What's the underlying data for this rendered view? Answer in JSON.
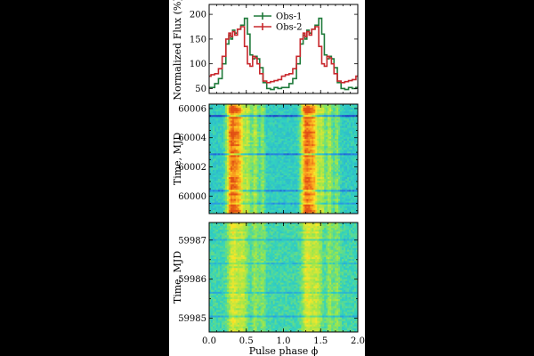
{
  "chart_data": [
    {
      "type": "line",
      "ylabel": "Normalized Flux (%)",
      "xlim": [
        0,
        2
      ],
      "ylim": [
        40,
        220
      ],
      "yticks": [
        "50",
        "100",
        "150",
        "200"
      ],
      "legend_position": "top-center",
      "series": [
        {
          "name": "Obs-1",
          "color": "#1f7a3a",
          "x": [
            0.0,
            0.05,
            0.1,
            0.15,
            0.2,
            0.25,
            0.28,
            0.3,
            0.33,
            0.36,
            0.4,
            0.45,
            0.5,
            0.53,
            0.57,
            0.6,
            0.63,
            0.66,
            0.7,
            0.75,
            0.8,
            0.85,
            0.9,
            0.95,
            1.0,
            1.05,
            1.1,
            1.15,
            1.2,
            1.25,
            1.28,
            1.3,
            1.33,
            1.36,
            1.4,
            1.45,
            1.5,
            1.53,
            1.57,
            1.6,
            1.63,
            1.66,
            1.7,
            1.75,
            1.8,
            1.85,
            1.9,
            1.95,
            2.0
          ],
          "y": [
            52,
            52,
            60,
            70,
            100,
            140,
            158,
            150,
            168,
            162,
            170,
            178,
            192,
            160,
            118,
            110,
            115,
            110,
            92,
            62,
            50,
            48,
            52,
            50,
            52,
            52,
            60,
            70,
            100,
            140,
            158,
            150,
            168,
            162,
            170,
            178,
            192,
            160,
            118,
            110,
            115,
            110,
            92,
            62,
            50,
            48,
            52,
            50,
            52
          ]
        },
        {
          "name": "Obs-2",
          "color": "#c8282d",
          "x": [
            0.0,
            0.05,
            0.1,
            0.15,
            0.2,
            0.25,
            0.28,
            0.3,
            0.33,
            0.36,
            0.4,
            0.45,
            0.5,
            0.53,
            0.57,
            0.6,
            0.63,
            0.66,
            0.7,
            0.75,
            0.8,
            0.85,
            0.9,
            0.95,
            1.0,
            1.05,
            1.1,
            1.15,
            1.2,
            1.25,
            1.28,
            1.3,
            1.33,
            1.36,
            1.4,
            1.45,
            1.5,
            1.53,
            1.57,
            1.6,
            1.63,
            1.66,
            1.7,
            1.75,
            1.8,
            1.85,
            1.9,
            1.95,
            2.0
          ],
          "y": [
            75,
            78,
            80,
            90,
            115,
            150,
            162,
            155,
            165,
            158,
            170,
            175,
            135,
            100,
            95,
            115,
            112,
            100,
            80,
            65,
            62,
            64,
            66,
            68,
            75,
            78,
            80,
            90,
            115,
            150,
            162,
            155,
            165,
            158,
            170,
            175,
            135,
            100,
            95,
            115,
            112,
            100,
            80,
            65,
            62,
            64,
            66,
            68,
            75
          ]
        }
      ]
    },
    {
      "type": "heatmap",
      "ylabel": "Time, MJD",
      "xlim": [
        0,
        2
      ],
      "ylim": [
        59998.8,
        60006.3
      ],
      "yticks": [
        60000,
        60002,
        60004,
        60006
      ],
      "colormap": "jet-like (blue-cyan-green-yellow-orange)"
    },
    {
      "type": "heatmap",
      "ylabel": "Time, MJD",
      "xlabel": "Pulse phase ϕ",
      "xlim": [
        0,
        2
      ],
      "xticks": [
        "0.0",
        "0.5",
        "1.0",
        "1.5",
        "2.0"
      ],
      "ylim": [
        59984.65,
        59987.45
      ],
      "yticks": [
        59985,
        59986,
        59987
      ],
      "colormap": "jet-like (blue-cyan-green-yellow-orange)"
    }
  ]
}
